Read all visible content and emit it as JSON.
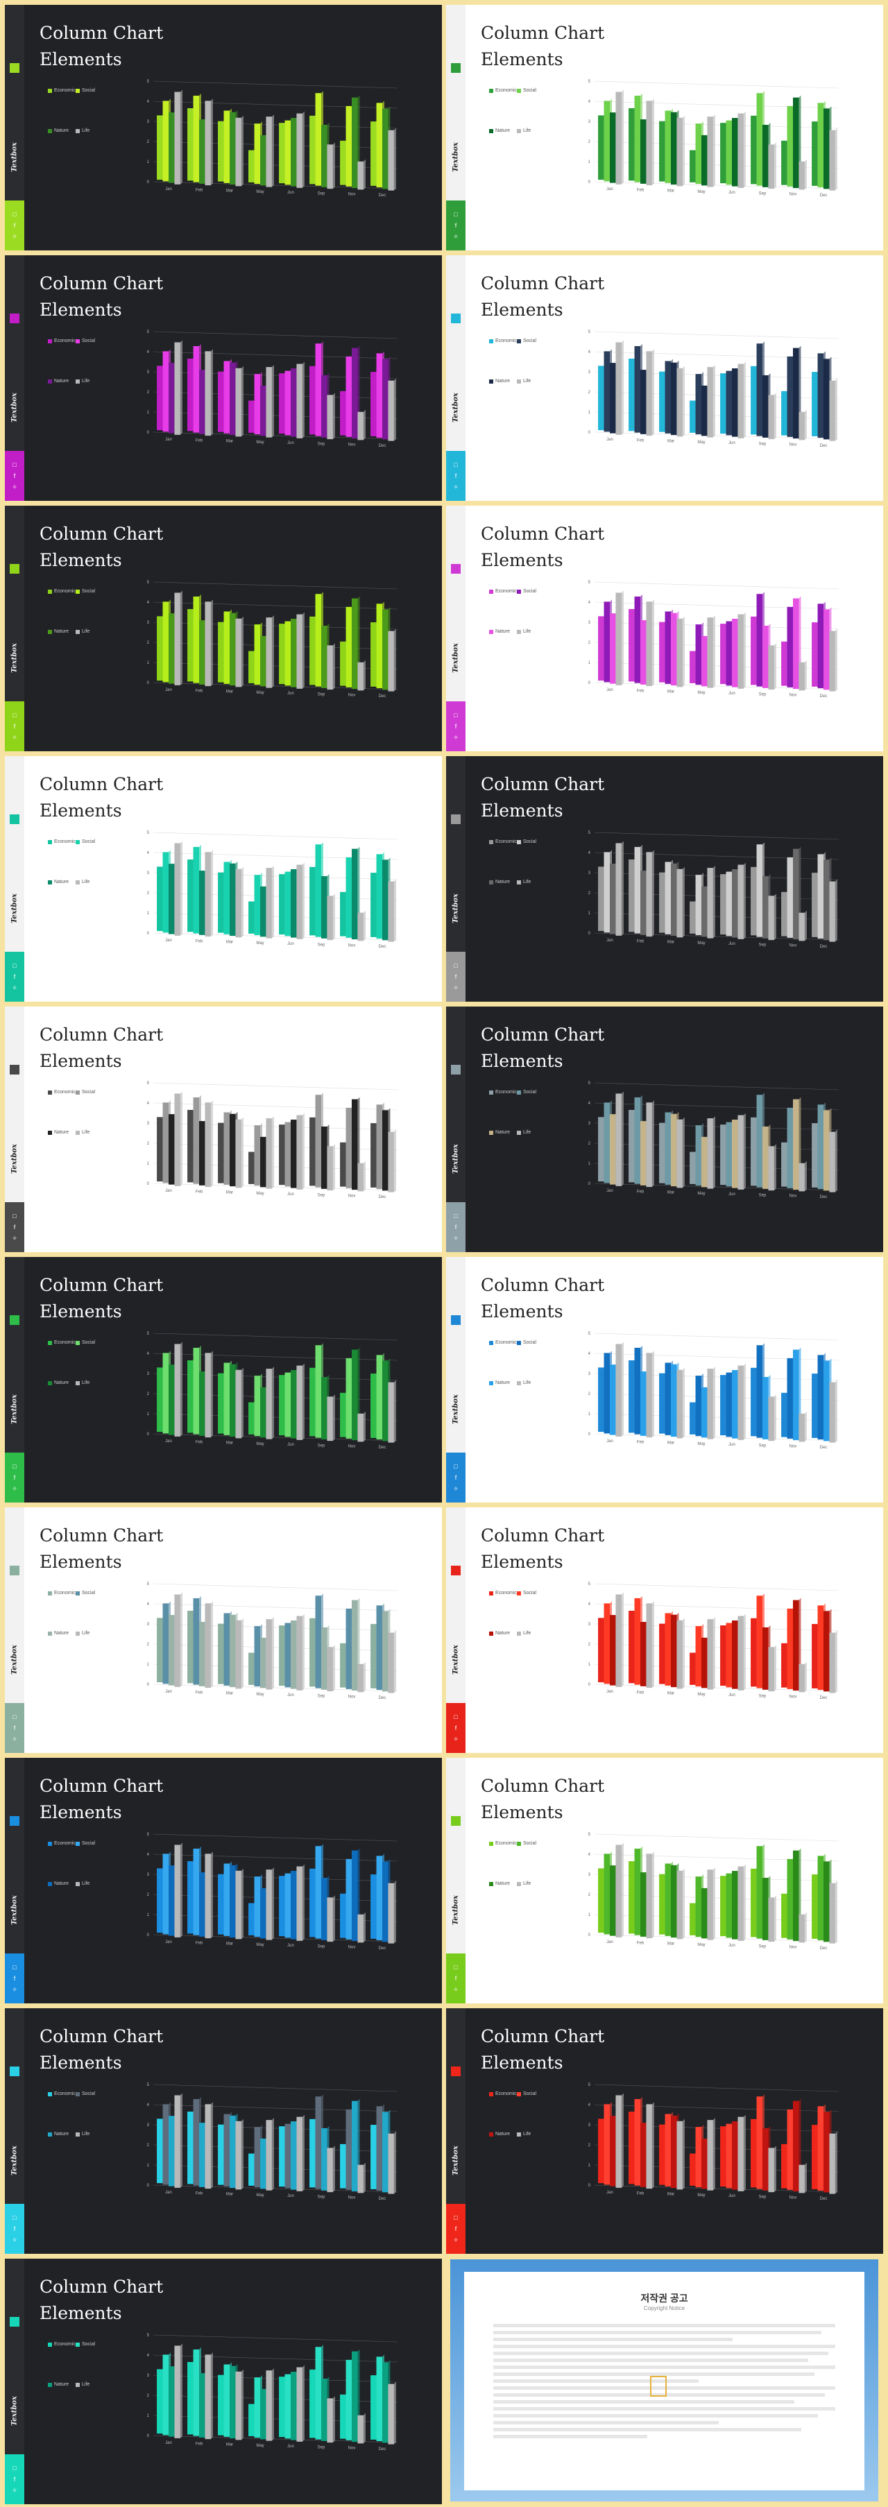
{
  "slide_title_line1": "Column Chart",
  "slide_title_line2": "Elements",
  "brand": "Textbox",
  "social_icons": [
    "square-icon",
    "f-icon",
    "bird-icon"
  ],
  "legend": [
    "Economic",
    "Social",
    "Nature",
    "Life"
  ],
  "chart_data": {
    "type": "bar",
    "categories": [
      "Jan",
      "Feb",
      "Mar",
      "May",
      "Jun",
      "Sep",
      "Nov",
      "Dec"
    ],
    "series": [
      {
        "name": "Economic",
        "values": [
          3.2,
          3.6,
          3.0,
          1.6,
          3.0,
          3.4,
          2.2,
          3.2
        ]
      },
      {
        "name": "Social",
        "values": [
          4.0,
          4.3,
          3.6,
          3.0,
          3.2,
          4.6,
          4.0,
          4.2
        ]
      },
      {
        "name": "Nature",
        "values": [
          3.5,
          3.2,
          3.6,
          2.5,
          3.4,
          3.1,
          4.5,
          4.0
        ]
      },
      {
        "name": "Life",
        "values": [
          4.6,
          4.2,
          3.4,
          3.5,
          3.7,
          2.2,
          1.4,
          3.0
        ]
      }
    ],
    "ylim": [
      0,
      5
    ]
  },
  "slides": [
    {
      "theme": "dark",
      "accent": "#9bdc22",
      "accent2": "#c6f026",
      "accent3": "#3a8f24"
    },
    {
      "theme": "light",
      "accent": "#2f9e3a",
      "accent2": "#6ed14a",
      "accent3": "#0a6a28"
    },
    {
      "theme": "dark",
      "accent": "#c21ec8",
      "accent2": "#e73ce8",
      "accent3": "#7b1a96"
    },
    {
      "theme": "light",
      "accent": "#22b6d9",
      "accent2": "#2a3d5a",
      "accent3": "#1b2a46"
    },
    {
      "theme": "dark",
      "accent": "#8fd418",
      "accent2": "#b5ee1a",
      "accent3": "#4c9a1a"
    },
    {
      "theme": "light",
      "accent": "#d03ad4",
      "accent2": "#8e1ab8",
      "accent3": "#e651e3"
    },
    {
      "theme": "light",
      "accent": "#14c4a0",
      "accent2": "#19d3b0",
      "accent3": "#0a8a6a"
    },
    {
      "theme": "dark",
      "accent": "#9a9a9a",
      "accent2": "#cfcfcf",
      "accent3": "#6a6a6a"
    },
    {
      "theme": "light",
      "accent": "#4a4a4a",
      "accent2": "#9a9a9a",
      "accent3": "#222222"
    },
    {
      "theme": "dark",
      "accent": "#8ea0a8",
      "accent2": "#6e9aa6",
      "accent3": "#c5b48a"
    },
    {
      "theme": "dark",
      "accent": "#2fbd4a",
      "accent2": "#6ede6e",
      "accent3": "#1a8a35"
    },
    {
      "theme": "light",
      "accent": "#1e88d6",
      "accent2": "#1270c0",
      "accent3": "#2aa0ea"
    },
    {
      "theme": "light",
      "accent": "#8bb0a0",
      "accent2": "#5a8fa8",
      "accent3": "#9ab3a8"
    },
    {
      "theme": "light",
      "accent": "#e8231a",
      "accent2": "#ff3a24",
      "accent3": "#b51208"
    },
    {
      "theme": "dark",
      "accent": "#1a8ee0",
      "accent2": "#36a8f0",
      "accent3": "#0e6cbc"
    },
    {
      "theme": "light",
      "accent": "#78cc1c",
      "accent2": "#4fb82a",
      "accent3": "#2a8a1a"
    },
    {
      "theme": "dark",
      "accent": "#2ad0e6",
      "accent2": "#5e6c7c",
      "accent3": "#22a8c8"
    },
    {
      "theme": "dark",
      "accent": "#f0261a",
      "accent2": "#ff4030",
      "accent3": "#c01410"
    },
    {
      "theme": "dark",
      "accent": "#16d8b8",
      "accent2": "#2ae0c4",
      "accent3": "#0aa080"
    }
  ],
  "notice": {
    "title": "저작권 공고",
    "subtitle": "Copyright Notice",
    "seal": "C"
  }
}
